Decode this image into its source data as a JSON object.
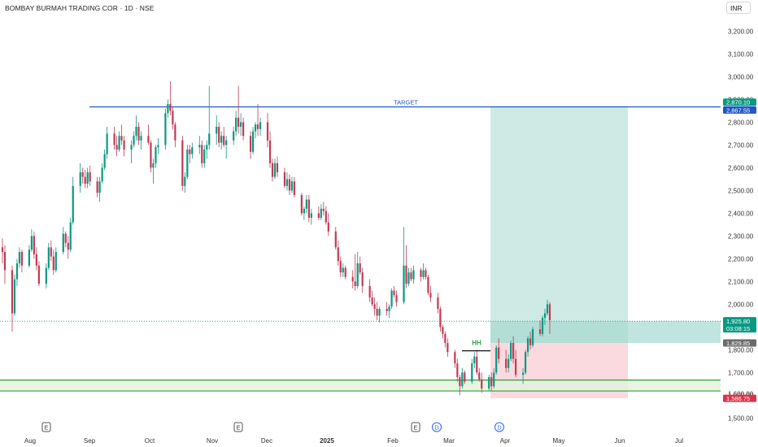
{
  "header": {
    "symbol_title": "BOMBAY BURMAH TRADING COR · 1D · NSE",
    "currency": "INR"
  },
  "colors": {
    "up": "#089981",
    "down": "#c23a55",
    "target_line": "#1e57c9",
    "support_line": "#2e9e3a",
    "profit_zone": "#cfeae5",
    "loss_zone": "#fadadf",
    "support_zone": "#e4f2dc",
    "hh_text": "#35a045"
  },
  "chart_data": {
    "type": "candlestick",
    "symbol": "BOMBAY BURMAH TRADING COR",
    "interval": "1D",
    "exchange": "NSE",
    "ylim": [
      1480,
      3330
    ],
    "y_ticks": [
      "1,500.00",
      "1,600.00",
      "1,700.00",
      "1,800.00",
      "1,900.00",
      "2,000.00",
      "2,100.00",
      "2,200.00",
      "2,300.00",
      "2,400.00",
      "2,500.00",
      "2,600.00",
      "2,700.00",
      "2,800.00",
      "2,900.00",
      "3,000.00",
      "3,100.00",
      "3,200.00"
    ],
    "x_labels": [
      "Aug",
      "Sep",
      "Oct",
      "Nov",
      "Dec",
      "2025",
      "Feb",
      "Mar",
      "Apr",
      "May",
      "Jun",
      "Jul"
    ],
    "x_label_bold": "2025",
    "start_date": "2024-07-18",
    "candles": [
      [
        2250,
        2290,
        2180,
        2230
      ],
      [
        2230,
        2260,
        2090,
        2150
      ],
      [
        2150,
        2170,
        1880,
        1960
      ],
      [
        1960,
        2130,
        1950,
        2110
      ],
      [
        2110,
        2200,
        2080,
        2180
      ],
      [
        2180,
        2250,
        2160,
        2230
      ],
      [
        2230,
        2240,
        2140,
        2170
      ],
      [
        2170,
        2260,
        2160,
        2240
      ],
      [
        2240,
        2330,
        2230,
        2300
      ],
      [
        2300,
        2320,
        2200,
        2220
      ],
      [
        2220,
        2250,
        2150,
        2170
      ],
      [
        2170,
        2190,
        2080,
        2090
      ],
      [
        2090,
        2180,
        2070,
        2160
      ],
      [
        2160,
        2270,
        2150,
        2250
      ],
      [
        2250,
        2280,
        2190,
        2210
      ],
      [
        2210,
        2240,
        2130,
        2150
      ],
      [
        2150,
        2250,
        2140,
        2230
      ],
      [
        2230,
        2340,
        2220,
        2310
      ],
      [
        2310,
        2320,
        2250,
        2270
      ],
      [
        2270,
        2300,
        2200,
        2240
      ],
      [
        2240,
        2380,
        2230,
        2360
      ],
      [
        2360,
        2560,
        2350,
        2520
      ],
      [
        2520,
        2620,
        2490,
        2580
      ],
      [
        2580,
        2600,
        2530,
        2560
      ],
      [
        2560,
        2590,
        2510,
        2530
      ],
      [
        2530,
        2600,
        2510,
        2580
      ],
      [
        2580,
        2610,
        2520,
        2540
      ],
      [
        2540,
        2560,
        2470,
        2490
      ],
      [
        2490,
        2560,
        2450,
        2540
      ],
      [
        2540,
        2620,
        2530,
        2600
      ],
      [
        2600,
        2680,
        2590,
        2660
      ],
      [
        2660,
        2780,
        2640,
        2750
      ],
      [
        2750,
        2780,
        2680,
        2700
      ],
      [
        2700,
        2740,
        2650,
        2680
      ],
      [
        2680,
        2760,
        2670,
        2740
      ],
      [
        2740,
        2790,
        2700,
        2720
      ],
      [
        2720,
        2740,
        2650,
        2680
      ],
      [
        2680,
        2720,
        2620,
        2700
      ],
      [
        2700,
        2760,
        2690,
        2740
      ],
      [
        2740,
        2830,
        2720,
        2780
      ],
      [
        2780,
        2800,
        2700,
        2720
      ],
      [
        2720,
        2760,
        2680,
        2740
      ],
      [
        2740,
        2790,
        2700,
        2710
      ],
      [
        2710,
        2720,
        2580,
        2600
      ],
      [
        2600,
        2640,
        2530,
        2620
      ],
      [
        2620,
        2700,
        2600,
        2690
      ],
      [
        2690,
        2730,
        2660,
        2700
      ],
      [
        2700,
        2860,
        2680,
        2840
      ],
      [
        2840,
        2900,
        2820,
        2880
      ],
      [
        2880,
        2980,
        2830,
        2850
      ],
      [
        2850,
        2870,
        2770,
        2790
      ],
      [
        2790,
        2800,
        2690,
        2720
      ],
      [
        2720,
        2740,
        2500,
        2520
      ],
      [
        2520,
        2580,
        2490,
        2560
      ],
      [
        2560,
        2700,
        2550,
        2680
      ],
      [
        2680,
        2700,
        2620,
        2660
      ],
      [
        2660,
        2710,
        2640,
        2690
      ],
      [
        2690,
        2740,
        2660,
        2700
      ],
      [
        2700,
        2720,
        2600,
        2620
      ],
      [
        2620,
        2700,
        2600,
        2680
      ],
      [
        2680,
        2720,
        2640,
        2700
      ],
      [
        2700,
        2960,
        2680,
        2750
      ],
      [
        2750,
        2830,
        2700,
        2780
      ],
      [
        2780,
        2800,
        2690,
        2710
      ],
      [
        2710,
        2760,
        2680,
        2740
      ],
      [
        2740,
        2780,
        2690,
        2700
      ],
      [
        2700,
        2740,
        2640,
        2720
      ],
      [
        2720,
        2780,
        2700,
        2760
      ],
      [
        2760,
        2850,
        2740,
        2820
      ],
      [
        2820,
        2960,
        2750,
        2780
      ],
      [
        2780,
        2840,
        2740,
        2800
      ],
      [
        2800,
        2820,
        2720,
        2740
      ],
      [
        2740,
        2760,
        2640,
        2670
      ],
      [
        2670,
        2780,
        2660,
        2760
      ],
      [
        2760,
        2800,
        2730,
        2790
      ],
      [
        2790,
        2880,
        2740,
        2770
      ],
      [
        2770,
        2820,
        2740,
        2800
      ],
      [
        2800,
        2840,
        2690,
        2720
      ],
      [
        2720,
        2760,
        2600,
        2620
      ],
      [
        2620,
        2640,
        2540,
        2560
      ],
      [
        2560,
        2640,
        2550,
        2620
      ],
      [
        2620,
        2650,
        2560,
        2580
      ],
      [
        2580,
        2600,
        2510,
        2520
      ],
      [
        2520,
        2580,
        2500,
        2550
      ],
      [
        2550,
        2570,
        2480,
        2500
      ],
      [
        2500,
        2560,
        2490,
        2540
      ],
      [
        2540,
        2560,
        2470,
        2480
      ],
      [
        2480,
        2490,
        2390,
        2400
      ],
      [
        2400,
        2430,
        2370,
        2420
      ],
      [
        2420,
        2480,
        2400,
        2460
      ],
      [
        2460,
        2480,
        2360,
        2380
      ],
      [
        2380,
        2420,
        2350,
        2400
      ],
      [
        2400,
        2430,
        2370,
        2380
      ],
      [
        2380,
        2440,
        2370,
        2420
      ],
      [
        2420,
        2450,
        2390,
        2410
      ],
      [
        2410,
        2430,
        2350,
        2360
      ],
      [
        2360,
        2400,
        2300,
        2320
      ],
      [
        2320,
        2340,
        2240,
        2250
      ],
      [
        2250,
        2280,
        2170,
        2190
      ],
      [
        2190,
        2210,
        2120,
        2140
      ],
      [
        2140,
        2180,
        2120,
        2160
      ],
      [
        2160,
        2170,
        2110,
        2120
      ],
      [
        2120,
        2150,
        2070,
        2100
      ],
      [
        2100,
        2220,
        2060,
        2080
      ],
      [
        2080,
        2230,
        2070,
        2180
      ],
      [
        2180,
        2210,
        2130,
        2140
      ],
      [
        2140,
        2160,
        2050,
        2080
      ],
      [
        2080,
        2110,
        2010,
        2030
      ],
      [
        2030,
        2060,
        1990,
        2000
      ],
      [
        2000,
        2030,
        1950,
        1980
      ],
      [
        1980,
        2010,
        1930,
        1950
      ],
      [
        1950,
        1990,
        1920,
        1980
      ],
      [
        1980,
        2010,
        1950,
        1970
      ],
      [
        1970,
        2000,
        1940,
        1990
      ],
      [
        1990,
        2070,
        1980,
        2060
      ],
      [
        2060,
        2080,
        2030,
        2040
      ],
      [
        2040,
        2060,
        1990,
        2010
      ],
      [
        2010,
        2340,
        2000,
        2170
      ],
      [
        2170,
        2260,
        2070,
        2090
      ],
      [
        2090,
        2160,
        2080,
        2140
      ],
      [
        2140,
        2160,
        2100,
        2110
      ],
      [
        2110,
        2170,
        2090,
        2150
      ],
      [
        2150,
        2160,
        2100,
        2120
      ],
      [
        2120,
        2180,
        2110,
        2150
      ],
      [
        2150,
        2160,
        2110,
        2120
      ],
      [
        2120,
        2130,
        2040,
        2050
      ],
      [
        2050,
        2080,
        2010,
        2030
      ],
      [
        2030,
        2050,
        1960,
        1980
      ],
      [
        1980,
        1990,
        1880,
        1900
      ],
      [
        1900,
        1910,
        1850,
        1870
      ],
      [
        1870,
        1880,
        1810,
        1830
      ],
      [
        1830,
        1850,
        1770,
        1790
      ],
      [
        1790,
        1800,
        1720,
        1740
      ],
      [
        1740,
        1760,
        1660,
        1680
      ],
      [
        1680,
        1690,
        1600,
        1640
      ],
      [
        1640,
        1720,
        1630,
        1700
      ],
      [
        1700,
        1710,
        1650,
        1660
      ],
      [
        1660,
        1760,
        1650,
        1740
      ],
      [
        1740,
        1790,
        1720,
        1770
      ],
      [
        1770,
        1800,
        1690,
        1700
      ],
      [
        1700,
        1720,
        1660,
        1670
      ],
      [
        1670,
        1700,
        1610,
        1630
      ],
      [
        1630,
        1690,
        1620,
        1680
      ],
      [
        1680,
        1700,
        1620,
        1640
      ],
      [
        1640,
        1720,
        1630,
        1700
      ],
      [
        1700,
        1820,
        1690,
        1810
      ],
      [
        1810,
        1850,
        1740,
        1760
      ],
      [
        1760,
        1800,
        1700,
        1720
      ],
      [
        1720,
        1780,
        1700,
        1760
      ],
      [
        1760,
        1840,
        1750,
        1830
      ],
      [
        1830,
        1860,
        1740,
        1760
      ],
      [
        1760,
        1800,
        1680,
        1690
      ],
      [
        1690,
        1720,
        1650,
        1700
      ],
      [
        1700,
        1800,
        1690,
        1790
      ],
      [
        1790,
        1860,
        1770,
        1850
      ],
      [
        1850,
        1880,
        1800,
        1820
      ],
      [
        1820,
        1900,
        1810,
        1890
      ],
      [
        1890,
        1930,
        1860,
        1870
      ],
      [
        1870,
        1950,
        1860,
        1940
      ],
      [
        1940,
        1980,
        1910,
        1960
      ],
      [
        1960,
        2020,
        1950,
        2000
      ],
      [
        2000,
        2010,
        1870,
        1930
      ]
    ],
    "target_line": {
      "label": "TARGET",
      "value": 2867.55
    },
    "position": {
      "entry": 1829.85,
      "target": 2870.1,
      "stop": 1586.75
    },
    "support_zone": {
      "top": 1667,
      "bottom": 1619
    },
    "current_price": 1925.8,
    "hh": {
      "label": "HH",
      "value": 1810
    },
    "price_labels": {
      "target_top": "2,870.10",
      "target_line": "2,867.55",
      "last_price": "1,925.80",
      "countdown": "03:08:15",
      "entry": "1,829.85",
      "stop": "1,586.75",
      "hidden_partial": "1,600.00"
    },
    "event_markers": [
      {
        "type": "earnings",
        "label": "E",
        "x_label": "Aug"
      },
      {
        "type": "earnings",
        "label": "E",
        "x_label": "Nov"
      },
      {
        "type": "earnings",
        "label": "E",
        "x_label": "Feb"
      },
      {
        "type": "dividend",
        "label": "D",
        "x_label": "Mar"
      },
      {
        "type": "dividend",
        "label": "D",
        "x_label": "Mar-Apr"
      }
    ]
  }
}
